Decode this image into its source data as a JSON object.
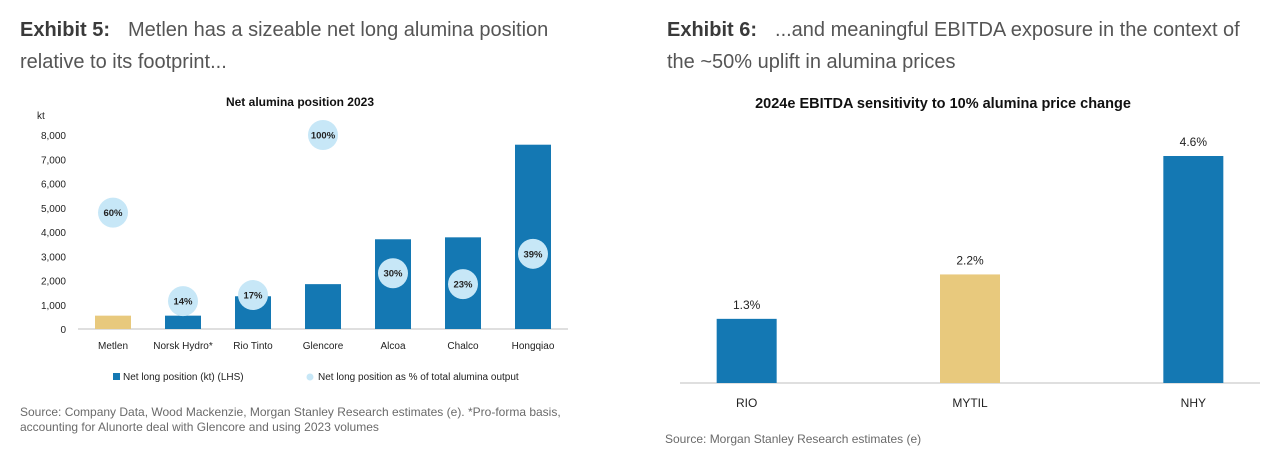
{
  "exhibit5": {
    "label": "Exhibit 5:",
    "title_line1": "Metlen has a sizeable net long alumina position",
    "title_line2": "relative to its footprint...",
    "source_line1": "Source: Company Data, Wood Mackenzie, Morgan Stanley Research estimates (e). *Pro-forma basis,",
    "source_line2": "accounting for Alunorte deal with Glencore and using 2023 volumes"
  },
  "exhibit6": {
    "label": "Exhibit 6:",
    "title_line1": "...and meaningful EBITDA exposure in the context of",
    "title_line2": "the ~50% uplift in alumina prices",
    "source": "Source: Morgan Stanley Research estimates (e)"
  },
  "colors": {
    "highlight": "#E8C97D",
    "bar": "#1478B3",
    "bubble": "#C7E7F7",
    "axis": "#BFBFBF"
  },
  "chart_data": [
    {
      "type": "bar",
      "title": "Net alumina position 2023",
      "ylabel": "kt",
      "ylim": [
        0,
        8000
      ],
      "yticks": [
        "0",
        "1,000",
        "2,000",
        "3,000",
        "4,000",
        "5,000",
        "6,000",
        "7,000",
        "8,000"
      ],
      "categories": [
        "Metlen",
        "Norsk Hydro*",
        "Rio Tinto",
        "Glencore",
        "Alcoa",
        "Chalco",
        "Hongqiao"
      ],
      "series": [
        {
          "name": "Net long position (kt) (LHS)",
          "type": "bar",
          "values": [
            550,
            550,
            1350,
            1850,
            3700,
            3780,
            7600
          ],
          "highlight_index": 0
        },
        {
          "name": "Net long position as % of total alumina output",
          "type": "bubble",
          "values": [
            60,
            14,
            17,
            100,
            30,
            23,
            39
          ],
          "labels": [
            "60%",
            "14%",
            "17%",
            "100%",
            "30%",
            "23%",
            "39%"
          ],
          "bubble_y_kt": [
            4800,
            1150,
            1400,
            8000,
            2300,
            1850,
            3100
          ]
        }
      ],
      "legend_position": "bottom"
    },
    {
      "type": "bar",
      "title": "2024e EBITDA sensitivity to 10% alumina price change",
      "categories": [
        "RIO",
        "MYTIL",
        "NHY"
      ],
      "values": [
        1.3,
        2.2,
        4.6
      ],
      "data_labels": [
        "1.3%",
        "2.2%",
        "4.6%"
      ],
      "highlight_index": 1,
      "ylim": [
        0,
        5.0
      ]
    }
  ]
}
